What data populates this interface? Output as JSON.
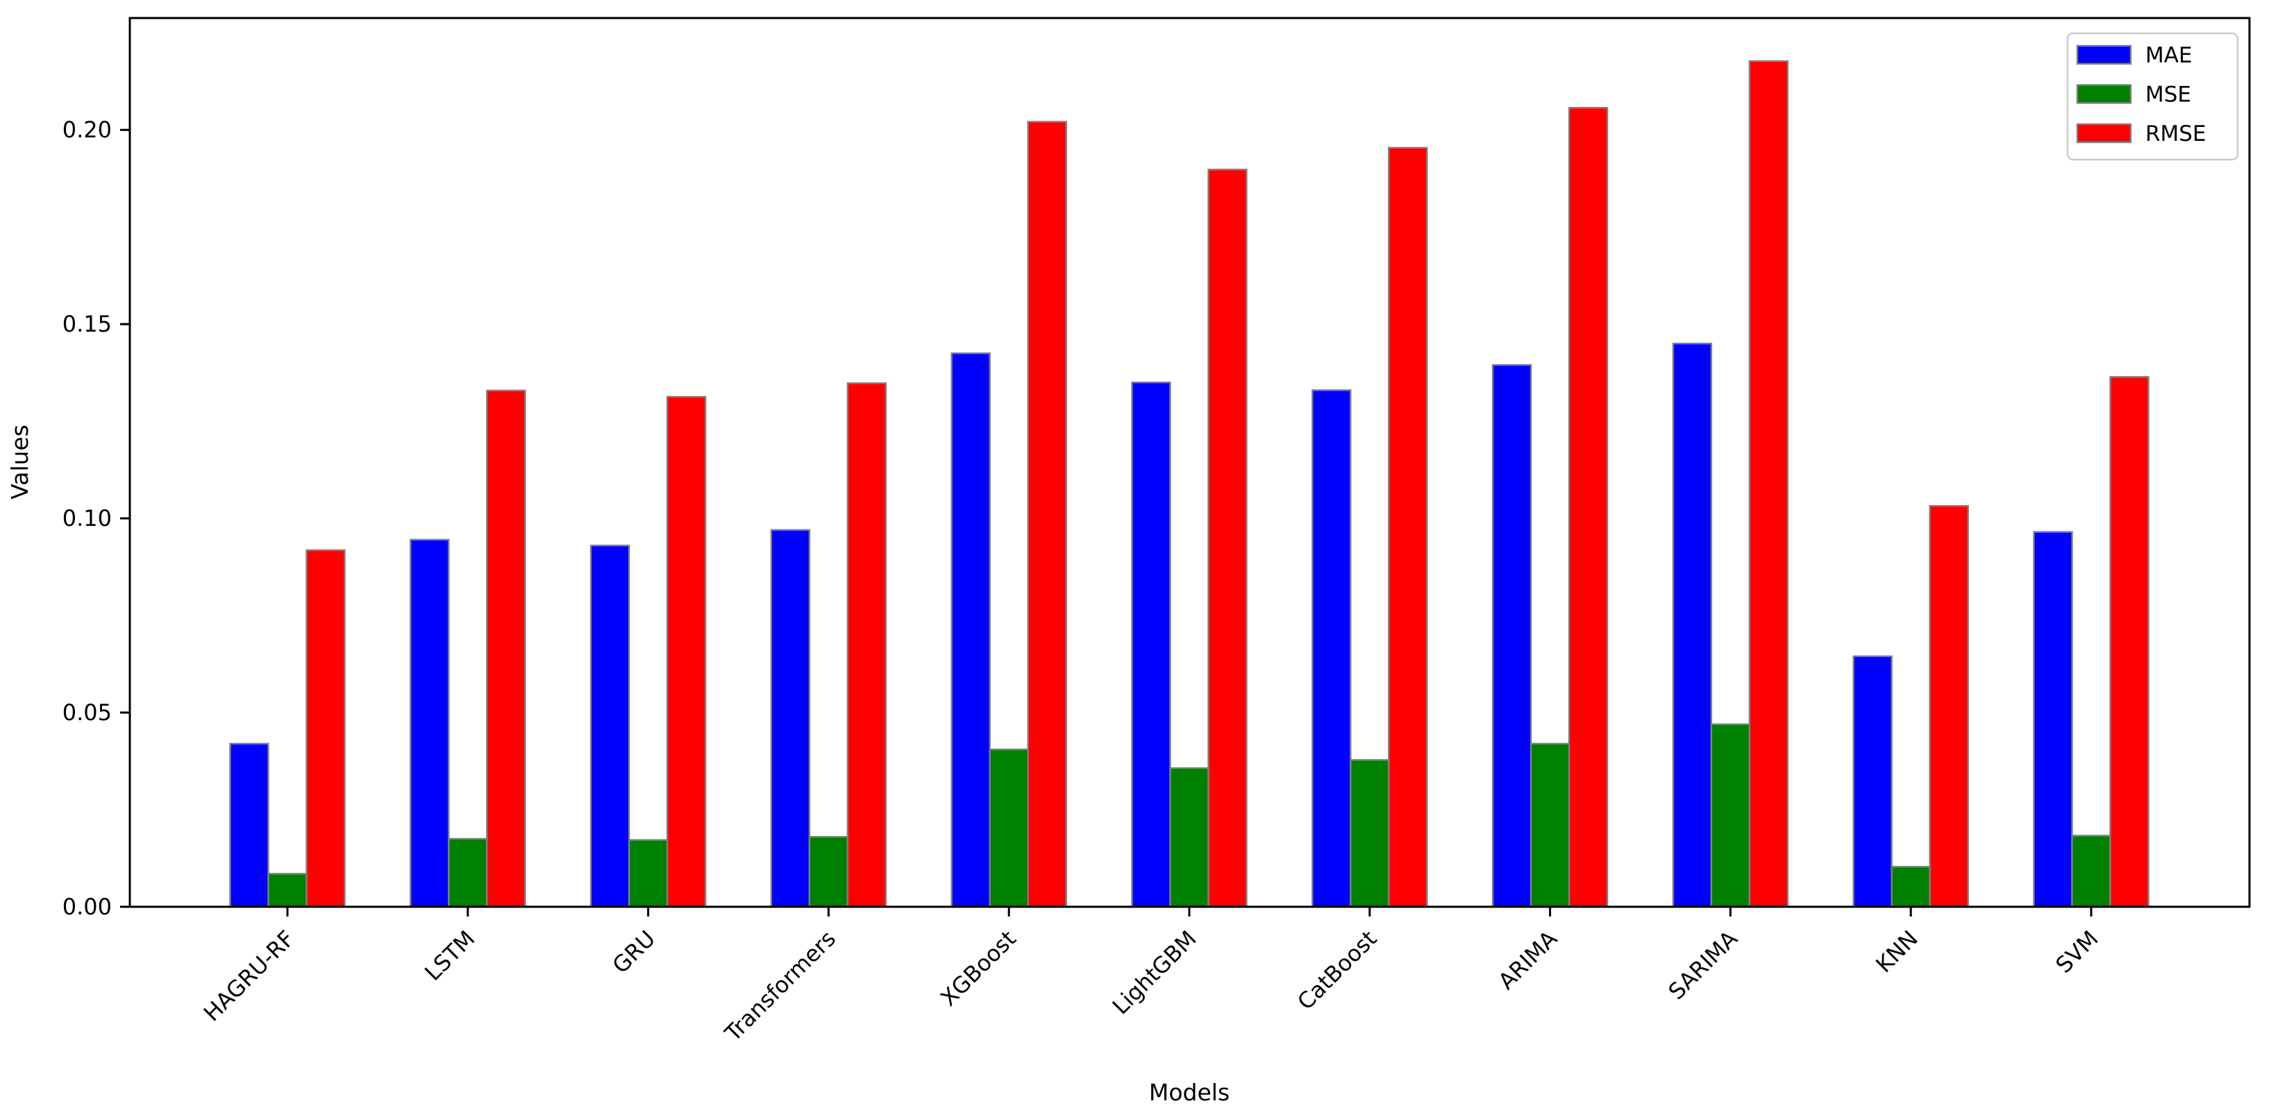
{
  "figure": {
    "background": "#ffffff",
    "frame_color": "#000000"
  },
  "legend": {
    "position": "upper right",
    "entries": [
      {
        "label": "MAE",
        "color": "#0000ff"
      },
      {
        "label": "MSE",
        "color": "#008000"
      },
      {
        "label": "RMSE",
        "color": "#ff0000"
      }
    ]
  },
  "chart_data": {
    "type": "bar",
    "title": "",
    "xlabel": "Models",
    "ylabel": "Values",
    "categories": [
      "HAGRU-RF",
      "LSTM",
      "GRU",
      "Transformers",
      "XGBoost",
      "LightGBM",
      "CatBoost",
      "ARIMA",
      "SARIMA",
      "KNN",
      "SVM"
    ],
    "series": [
      {
        "name": "MAE",
        "color": "#0000ff",
        "values": [
          0.042,
          0.0945,
          0.093,
          0.097,
          0.1425,
          0.135,
          0.133,
          0.1395,
          0.145,
          0.0645,
          0.0965
        ]
      },
      {
        "name": "MSE",
        "color": "#008000",
        "values": [
          0.0085,
          0.0175,
          0.0172,
          0.018,
          0.0405,
          0.0357,
          0.0378,
          0.042,
          0.047,
          0.0103,
          0.0183
        ]
      },
      {
        "name": "RMSE",
        "color": "#ff0000",
        "values": [
          0.0918,
          0.1329,
          0.1313,
          0.1348,
          0.2021,
          0.1898,
          0.1954,
          0.2057,
          0.2177,
          0.1032,
          0.1364
        ]
      }
    ],
    "ylim": [
      0,
      0.2288
    ],
    "yticks": [
      0.0,
      0.05,
      0.1,
      0.15,
      0.2
    ],
    "ytick_labels": [
      "0.00",
      "0.05",
      "0.10",
      "0.15",
      "0.20"
    ],
    "xtick_rotation": 45,
    "grid": false,
    "bar_edge_color": "#7f7f7f",
    "legend_edge_color": "#cccccc",
    "legend_position": "upper right"
  }
}
